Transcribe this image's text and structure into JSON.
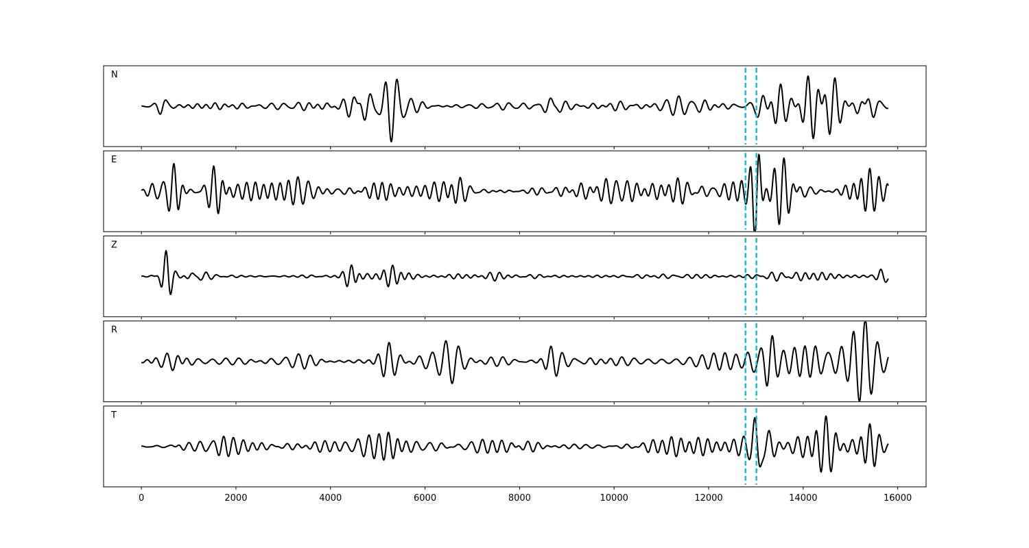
{
  "chart_data": {
    "type": "line",
    "title": "",
    "xlabel": "",
    "ylabel": "",
    "xlim": [
      -800,
      16600
    ],
    "ylim": [
      -1.0,
      1.0
    ],
    "x_ticks": [
      0,
      2000,
      4000,
      6000,
      8000,
      10000,
      12000,
      14000,
      16000
    ],
    "x_tick_labels": [
      "0",
      "2000",
      "4000",
      "6000",
      "8000",
      "10000",
      "12000",
      "14000",
      "16000"
    ],
    "x_start": 0,
    "x_end": 15800,
    "grid": false,
    "legend": "none",
    "trace_color": "#000000",
    "pick_color": "#17becf",
    "vertical_markers": [
      12780,
      13010
    ],
    "panels": [
      {
        "label": "N",
        "seed": 11,
        "background_amplitude": 0.2,
        "bursts": [
          {
            "t": 480,
            "a": 0.35,
            "w": 140
          },
          {
            "t": 4650,
            "a": 0.45,
            "w": 250
          },
          {
            "t": 5300,
            "a": 0.45,
            "w": 250
          },
          {
            "t": 8700,
            "a": 0.35,
            "w": 200
          },
          {
            "t": 13050,
            "a": 0.9,
            "w": 150
          },
          {
            "t": 13350,
            "a": 0.75,
            "w": 250
          },
          {
            "t": 14400,
            "a": 0.7,
            "w": 500
          },
          {
            "t": 15350,
            "a": 0.85,
            "w": 250
          }
        ]
      },
      {
        "label": "E",
        "seed": 22,
        "background_amplitude": 0.38,
        "bursts": [
          {
            "t": 720,
            "a": 0.65,
            "w": 180
          },
          {
            "t": 1600,
            "a": 0.5,
            "w": 250
          },
          {
            "t": 5000,
            "a": 0.4,
            "w": 300
          },
          {
            "t": 6600,
            "a": 0.35,
            "w": 250
          },
          {
            "t": 13020,
            "a": 0.9,
            "w": 120
          },
          {
            "t": 13700,
            "a": 0.55,
            "w": 400
          },
          {
            "t": 15200,
            "a": 0.45,
            "w": 300
          }
        ]
      },
      {
        "label": "Z",
        "seed": 33,
        "background_amplitude": 0.12,
        "bursts": [
          {
            "t": 520,
            "a": 1.0,
            "w": 150
          },
          {
            "t": 1100,
            "a": 0.35,
            "w": 250
          },
          {
            "t": 4450,
            "a": 0.4,
            "w": 200
          },
          {
            "t": 5300,
            "a": 0.25,
            "w": 300
          },
          {
            "t": 15700,
            "a": 0.2,
            "w": 150
          }
        ]
      },
      {
        "label": "R",
        "seed": 44,
        "background_amplitude": 0.28,
        "bursts": [
          {
            "t": 800,
            "a": 0.35,
            "w": 250
          },
          {
            "t": 5200,
            "a": 0.45,
            "w": 250
          },
          {
            "t": 6550,
            "a": 0.4,
            "w": 250
          },
          {
            "t": 8650,
            "a": 0.4,
            "w": 200
          },
          {
            "t": 12950,
            "a": 0.7,
            "w": 150
          },
          {
            "t": 13250,
            "a": 1.0,
            "w": 180
          },
          {
            "t": 14300,
            "a": 0.8,
            "w": 500
          },
          {
            "t": 15300,
            "a": 0.8,
            "w": 300
          }
        ]
      },
      {
        "label": "T",
        "seed": 55,
        "background_amplitude": 0.35,
        "bursts": [
          {
            "t": 720,
            "a": 0.65,
            "w": 180
          },
          {
            "t": 1600,
            "a": 0.45,
            "w": 250
          },
          {
            "t": 5300,
            "a": 0.4,
            "w": 300
          },
          {
            "t": 13060,
            "a": 0.95,
            "w": 120
          },
          {
            "t": 13200,
            "a": 0.75,
            "w": 200
          },
          {
            "t": 14500,
            "a": 0.6,
            "w": 400
          },
          {
            "t": 15350,
            "a": 0.7,
            "w": 250
          }
        ]
      }
    ]
  }
}
